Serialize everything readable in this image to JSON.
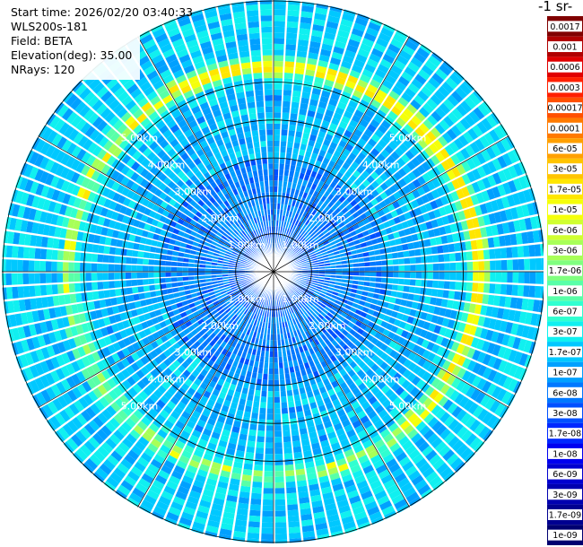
{
  "info": {
    "start_time": "Start time: 2026/02/20 03:40:33",
    "instrument": "WLS200s-181",
    "field": "Field: BETA",
    "elevation": "Elevation(deg): 35.00",
    "nrays": "NRays: 120"
  },
  "colorbar": {
    "title": "-1 sr-",
    "labels": [
      "0.0017",
      "0.001",
      "0.0006",
      "0.0003",
      "0.00017",
      "0.0001",
      "6e-05",
      "3e-05",
      "1.7e-05",
      "1e-05",
      "6e-06",
      "3e-06",
      "1.7e-06",
      "1e-06",
      "6e-07",
      "3e-07",
      "1.7e-07",
      "1e-07",
      "6e-08",
      "3e-08",
      "1.7e-08",
      "1e-08",
      "6e-09",
      "3e-09",
      "1.7e-09",
      "1e-09"
    ],
    "colors": [
      "#800000",
      "#b00000",
      "#e00000",
      "#ff2000",
      "#ff5000",
      "#ff7a00",
      "#ffa000",
      "#ffc400",
      "#ffe600",
      "#f5ff0a",
      "#d0ff30",
      "#a8ff58",
      "#80ff80",
      "#58ffa8",
      "#30ffd0",
      "#10f0f0",
      "#00c8ff",
      "#00a0ff",
      "#0078ff",
      "#0050ff",
      "#0028ff",
      "#0000f0",
      "#0000d0",
      "#0000b0",
      "#000090",
      "#000070"
    ]
  },
  "chart_data": {
    "type": "heatmap",
    "projection": "polar-ppi",
    "field": "BETA",
    "elevation_deg": 35.0,
    "n_rays": 120,
    "range_rings": [
      {
        "label": "1.00km",
        "value_km": 1.0
      },
      {
        "label": "2.00km",
        "value_km": 2.0
      },
      {
        "label": "3.00km",
        "value_km": 3.0
      },
      {
        "label": "4.00km",
        "value_km": 4.0
      },
      {
        "label": "5.00km",
        "value_km": 5.0
      }
    ],
    "max_range_km": 7.0,
    "features": [
      {
        "desc": "aerosol/cloud ring",
        "range_km": 5.4,
        "value": "1e-05"
      },
      {
        "desc": "background",
        "value": "6e-08"
      },
      {
        "desc": "near range",
        "value": "1e-08"
      }
    ]
  }
}
